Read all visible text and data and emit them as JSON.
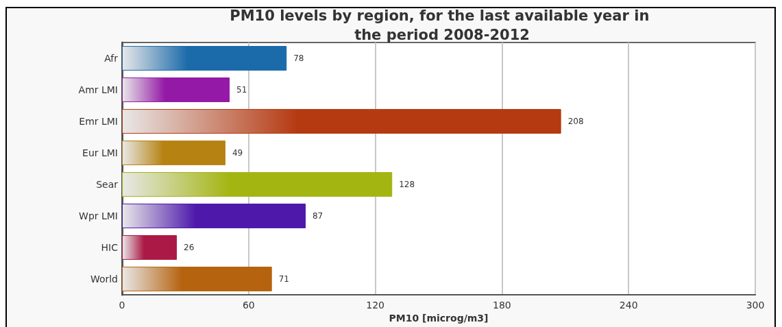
{
  "chart_data": {
    "type": "bar",
    "orientation": "horizontal",
    "title": "PM10 levels by region, for the last available year in the period 2008-2012",
    "xlabel": "PM10 [microg/m3]",
    "categories": [
      "Afr",
      "Amr LMI",
      "Emr LMI",
      "Eur LMI",
      "Sear",
      "Wpr LMI",
      "HIC",
      "World"
    ],
    "values": [
      78,
      51,
      208,
      49,
      128,
      87,
      26,
      71
    ],
    "colors": [
      "#1b6aaa",
      "#9419a6",
      "#b53a12",
      "#b68312",
      "#a3b511",
      "#4e19aa",
      "#ab1a47",
      "#b5630f"
    ],
    "xlim": [
      0,
      300
    ],
    "xticks": [
      0,
      60,
      120,
      180,
      240,
      300
    ],
    "grid": "x",
    "data_labels": true
  }
}
